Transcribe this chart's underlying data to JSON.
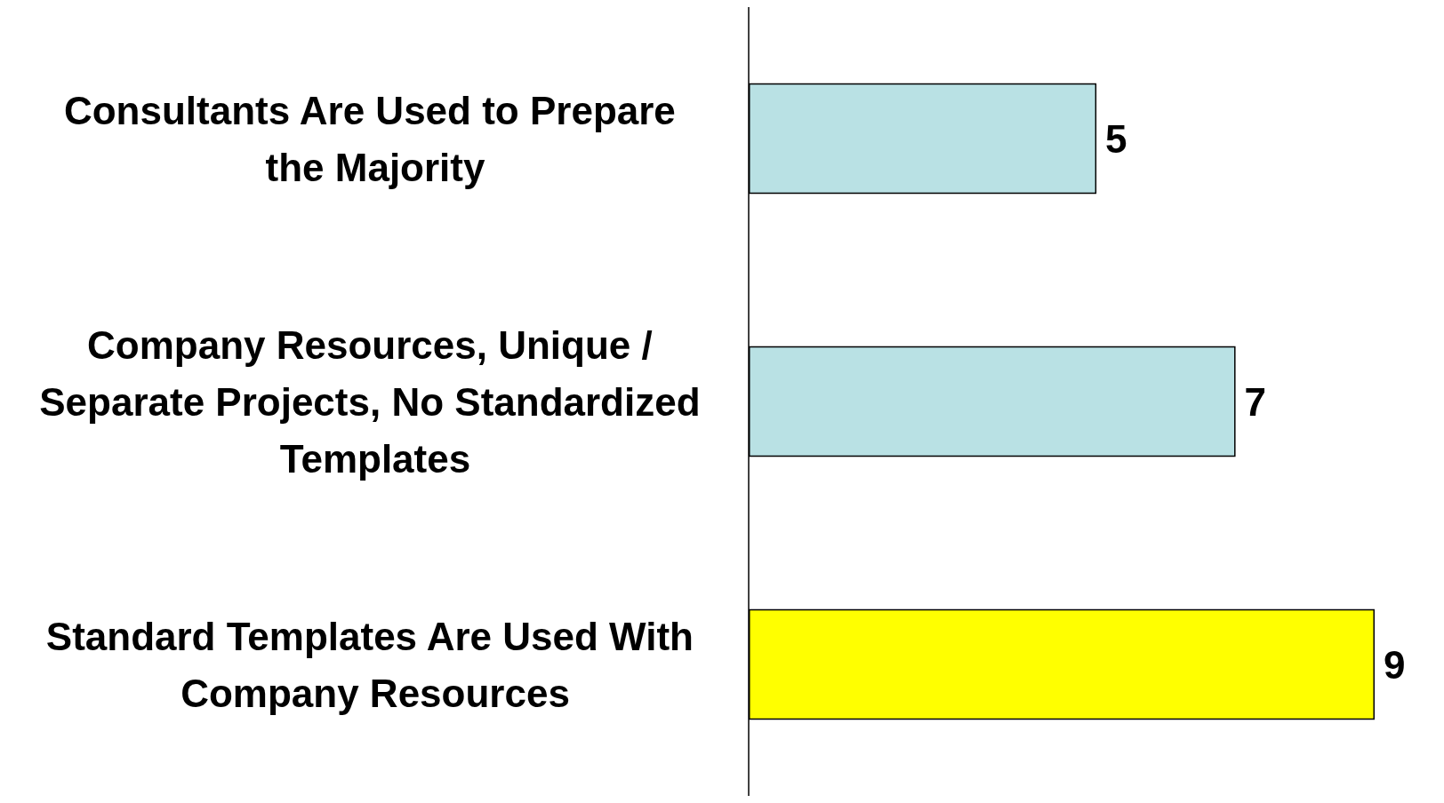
{
  "chart_data": {
    "type": "bar",
    "orientation": "horizontal",
    "categories": [
      "Consultants Are Used to Prepare the Majority",
      "Company Resources, Unique / Separate Projects, No Standardized Templates",
      "Standard Templates Are Used With Company Resources"
    ],
    "values": [
      5,
      7,
      9
    ],
    "colors": [
      "#b9e1e4",
      "#b9e1e4",
      "#ffff00"
    ],
    "data_labels": true
  }
}
